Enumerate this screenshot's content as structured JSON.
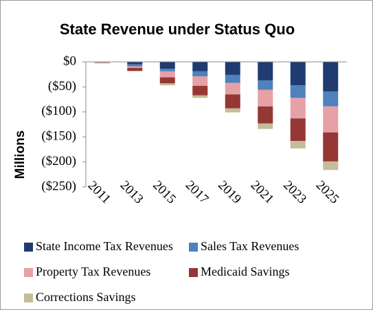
{
  "chart_data": {
    "type": "stacked_bar",
    "title": "State Revenue under Status Quo",
    "y_label": "Millions",
    "categories": [
      "2011",
      "2013",
      "2015",
      "2017",
      "2019",
      "2021",
      "2023",
      "2025"
    ],
    "series": [
      {
        "name": "State Income Tax Revenues",
        "color": "#1f3b70",
        "values": [
          -0.5,
          -5,
          -14,
          -19,
          -26,
          -37,
          -47,
          -59
        ]
      },
      {
        "name": "Sales Tax Revenues",
        "color": "#4f81bd",
        "values": [
          -0.5,
          -4,
          -5,
          -10,
          -16,
          -19,
          -25,
          -30
        ]
      },
      {
        "name": "Property Tax Revenues",
        "color": "#e6a1a6",
        "values": [
          -0.5,
          -3,
          -12,
          -19,
          -23,
          -33,
          -41,
          -52
        ]
      },
      {
        "name": "Medicaid Savings",
        "color": "#953735",
        "values": [
          -0.5,
          -6,
          -12,
          -19,
          -28,
          -34,
          -45,
          -58
        ]
      },
      {
        "name": "Corrections Savings",
        "color": "#c4bd97",
        "values": [
          -1,
          -1,
          -4,
          -5,
          -8,
          -11,
          -15,
          -17
        ]
      }
    ],
    "ylim": [
      -250,
      0
    ],
    "yticks": [
      {
        "value": 0,
        "label": "$0"
      },
      {
        "value": -50,
        "label": "($50)"
      },
      {
        "value": -100,
        "label": "($100)"
      },
      {
        "value": -150,
        "label": "($150)"
      },
      {
        "value": -200,
        "label": "($200)"
      },
      {
        "value": -250,
        "label": "($250)"
      }
    ]
  }
}
